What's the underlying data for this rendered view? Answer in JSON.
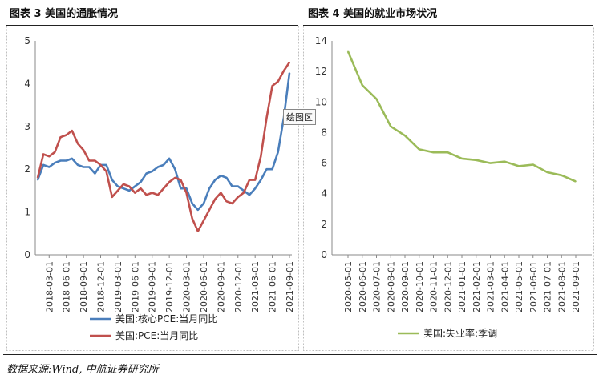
{
  "panels": [
    {
      "title": "图表 3 美国的通胀情况"
    },
    {
      "title": "图表 4 美国的就业市场状况"
    }
  ],
  "tooltip": "绘图区",
  "source": "数据来源:Wind, 中航证券研究所",
  "colors": {
    "blue": "#4a7ebb",
    "red": "#c0504d",
    "green": "#9bbb59",
    "grid": "#d9d9d9",
    "axis": "#888888"
  },
  "chart_data": [
    {
      "type": "line",
      "title": "图表 3 美国的通胀情况",
      "ylim": [
        0,
        5
      ],
      "yticks": [
        "0",
        "1",
        "2",
        "3",
        "4",
        "5"
      ],
      "xtick_labels": [
        "2018-03-01",
        "2018-06-01",
        "2018-09-01",
        "2018-12-01",
        "2019-03-01",
        "2019-06-01",
        "2019-09-01",
        "2019-12-01",
        "2020-03-01",
        "2020-06-01",
        "2020-09-01",
        "2020-12-01",
        "2021-03-01",
        "2021-06-01",
        "2021-09-01"
      ],
      "x": [
        "2018-01",
        "2018-02",
        "2018-03",
        "2018-04",
        "2018-05",
        "2018-06",
        "2018-07",
        "2018-08",
        "2018-09",
        "2018-10",
        "2018-11",
        "2018-12",
        "2019-01",
        "2019-02",
        "2019-03",
        "2019-04",
        "2019-05",
        "2019-06",
        "2019-07",
        "2019-08",
        "2019-09",
        "2019-10",
        "2019-11",
        "2019-12",
        "2020-01",
        "2020-02",
        "2020-03",
        "2020-04",
        "2020-05",
        "2020-06",
        "2020-07",
        "2020-08",
        "2020-09",
        "2020-10",
        "2020-11",
        "2020-12",
        "2021-01",
        "2021-02",
        "2021-03",
        "2021-04",
        "2021-05",
        "2021-06",
        "2021-07",
        "2021-08",
        "2021-09"
      ],
      "series": [
        {
          "name": "美国:核心PCE:当月同比",
          "color": "#4a7ebb",
          "values": [
            1.75,
            2.1,
            2.05,
            2.15,
            2.2,
            2.2,
            2.25,
            2.1,
            2.05,
            2.05,
            1.9,
            2.1,
            2.1,
            1.75,
            1.6,
            1.55,
            1.5,
            1.6,
            1.7,
            1.9,
            1.95,
            2.05,
            2.1,
            2.25,
            2.0,
            1.55,
            1.55,
            1.2,
            1.05,
            1.2,
            1.55,
            1.75,
            1.85,
            1.8,
            1.6,
            1.6,
            1.5,
            1.4,
            1.55,
            1.75,
            2.0,
            2.0,
            2.4,
            3.2,
            4.25
          ]
        },
        {
          "name": "美国:PCE:当月同比",
          "color": "#c0504d",
          "values": [
            1.8,
            2.35,
            2.3,
            2.4,
            2.75,
            2.8,
            2.9,
            2.6,
            2.45,
            2.2,
            2.2,
            2.1,
            1.95,
            1.35,
            1.5,
            1.65,
            1.6,
            1.45,
            1.55,
            1.4,
            1.45,
            1.4,
            1.55,
            1.7,
            1.8,
            1.75,
            1.45,
            0.85,
            0.55,
            0.8,
            1.05,
            1.3,
            1.45,
            1.25,
            1.2,
            1.35,
            1.45,
            1.75,
            1.75,
            2.3,
            3.2,
            3.95,
            4.05,
            4.3,
            4.5
          ]
        }
      ]
    },
    {
      "type": "line",
      "title": "图表 4 美国的就业市场状况",
      "ylim": [
        0,
        14
      ],
      "yticks": [
        "0",
        "2",
        "4",
        "6",
        "8",
        "10",
        "12",
        "14"
      ],
      "x": [
        "2020-05-01",
        "2020-06-01",
        "2020-07-01",
        "2020-08-01",
        "2020-09-01",
        "2020-10-01",
        "2020-11-01",
        "2020-12-01",
        "2021-01-01",
        "2021-02-01",
        "2021-03-01",
        "2021-04-01",
        "2021-05-01",
        "2021-06-01",
        "2021-07-01",
        "2021-08-01",
        "2021-09-01"
      ],
      "series": [
        {
          "name": "美国:失业率:季调",
          "color": "#9bbb59",
          "values": [
            13.3,
            11.1,
            10.2,
            8.4,
            7.8,
            6.9,
            6.7,
            6.7,
            6.3,
            6.2,
            6.0,
            6.1,
            5.8,
            5.9,
            5.4,
            5.2,
            4.8
          ]
        }
      ]
    }
  ]
}
